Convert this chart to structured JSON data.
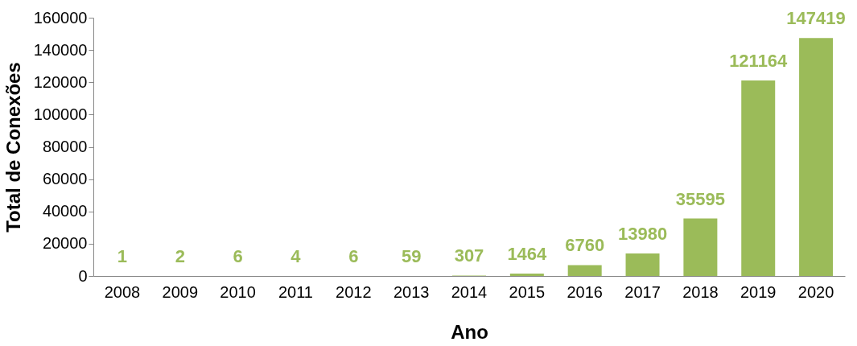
{
  "chart_data": {
    "type": "bar",
    "xlabel": "Ano",
    "ylabel": "Total de Conexões",
    "categories": [
      "2008",
      "2009",
      "2010",
      "2011",
      "2012",
      "2013",
      "2014",
      "2015",
      "2016",
      "2017",
      "2018",
      "2019",
      "2020"
    ],
    "values": [
      1,
      2,
      6,
      4,
      6,
      59,
      307,
      1464,
      6760,
      13980,
      35595,
      121164,
      147419
    ],
    "color": "#9bbb59",
    "ylim": [
      0,
      160000
    ],
    "yticks": [
      0,
      20000,
      40000,
      60000,
      80000,
      100000,
      120000,
      140000,
      160000
    ],
    "data_labels": true,
    "grid": false
  }
}
